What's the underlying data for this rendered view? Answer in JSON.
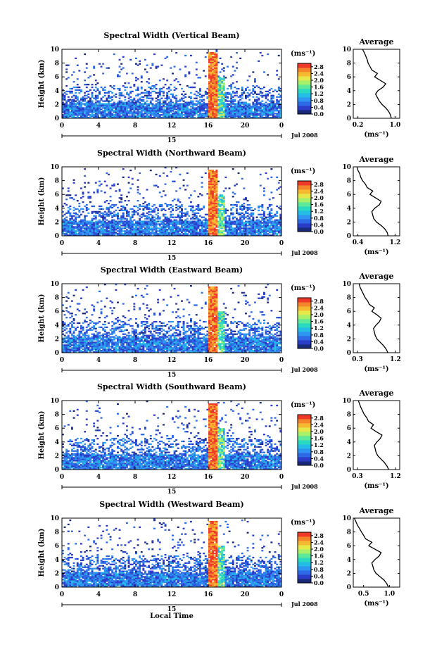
{
  "colors": {
    "scale": [
      "#1a2a7a",
      "#2a3cc8",
      "#2f6ae6",
      "#2e95f0",
      "#24bde6",
      "#29d9c0",
      "#5de89a",
      "#a8ef6a",
      "#e6e84a",
      "#f5b932",
      "#f5852a",
      "#ef3a2a"
    ],
    "axis": "#000000"
  },
  "figure": {
    "colorbar_unit": "(ms⁻¹)",
    "date_label": "Jul 2008",
    "xlabel": "Local Time"
  },
  "chart_data": [
    {
      "type": "heatmap",
      "title": "Spectral Width (Vertical Beam)",
      "ylabel": "Height (km)",
      "xlabel": "",
      "xlim": [
        0,
        24
      ],
      "ylim": [
        0,
        10
      ],
      "x_ticks": [
        "0",
        "4",
        "8",
        "12",
        "16",
        "20",
        "0"
      ],
      "y_ticks": [
        "0",
        "2",
        "4",
        "6",
        "8",
        "10"
      ],
      "day_label": "15",
      "colorbar": {
        "ticks": [
          "0.0",
          "0.4",
          "0.8",
          "1.2",
          "1.6",
          "2.0",
          "2.4",
          "2.8"
        ],
        "range": [
          0,
          3.0
        ]
      },
      "average": {
        "title": "Average",
        "xlabel": "(ms⁻¹)",
        "xlim": [
          0.1,
          1.1
        ],
        "x_ticks": [
          "0.2",
          "1.0"
        ],
        "heights": [
          0,
          0.5,
          1,
          1.5,
          2,
          2.5,
          3,
          3.5,
          4,
          4.5,
          5,
          5.5,
          6,
          6.5,
          7,
          7.5,
          8,
          8.5,
          9,
          9.5,
          10
        ],
        "values": [
          0.92,
          0.9,
          0.86,
          0.8,
          0.72,
          0.66,
          0.62,
          0.58,
          0.63,
          0.74,
          0.8,
          0.68,
          0.56,
          0.62,
          0.5,
          0.46,
          0.42,
          0.4,
          0.37,
          0.34,
          0.3
        ]
      }
    },
    {
      "type": "heatmap",
      "title": "Spectral Width (Northward Beam)",
      "ylabel": "Height (km)",
      "xlabel": "",
      "xlim": [
        0,
        24
      ],
      "ylim": [
        0,
        10
      ],
      "x_ticks": [
        "0",
        "4",
        "8",
        "12",
        "16",
        "20",
        "0"
      ],
      "y_ticks": [
        "0",
        "2",
        "4",
        "6",
        "8",
        "10"
      ],
      "day_label": "15",
      "colorbar": {
        "ticks": [
          "0.0",
          "0.4",
          "0.8",
          "1.2",
          "1.6",
          "2.0",
          "2.4",
          "2.8"
        ],
        "range": [
          0,
          3.0
        ]
      },
      "average": {
        "title": "Average",
        "xlabel": "(ms⁻¹)",
        "xlim": [
          0.3,
          1.3
        ],
        "x_ticks": [
          "0.4",
          "1.2"
        ],
        "heights": [
          0,
          0.5,
          1,
          1.5,
          2,
          2.5,
          3,
          3.5,
          4,
          4.5,
          5,
          5.5,
          6,
          6.5,
          7,
          7.5,
          8,
          8.5,
          9,
          9.5,
          10
        ],
        "values": [
          1.05,
          1.03,
          0.98,
          0.9,
          0.8,
          0.74,
          0.72,
          0.7,
          0.76,
          0.86,
          0.9,
          0.78,
          0.66,
          0.72,
          0.6,
          0.56,
          0.5,
          0.46,
          0.44,
          0.4,
          0.38
        ]
      }
    },
    {
      "type": "heatmap",
      "title": "Spectral Width (Eastward Beam)",
      "ylabel": "Height (km)",
      "xlabel": "",
      "xlim": [
        0,
        24
      ],
      "ylim": [
        0,
        10
      ],
      "x_ticks": [
        "0",
        "4",
        "8",
        "12",
        "16",
        "20",
        "0"
      ],
      "y_ticks": [
        "0",
        "2",
        "4",
        "6",
        "8",
        "10"
      ],
      "day_label": "15",
      "colorbar": {
        "ticks": [
          "0.0",
          "0.4",
          "0.8",
          "1.2",
          "1.6",
          "2.0",
          "2.4",
          "2.8"
        ],
        "range": [
          0,
          3.0
        ]
      },
      "average": {
        "title": "Average",
        "xlabel": "(ms⁻¹)",
        "xlim": [
          0.2,
          1.3
        ],
        "x_ticks": [
          "0.3",
          "1.2"
        ],
        "heights": [
          0,
          0.5,
          1,
          1.5,
          2,
          2.5,
          3,
          3.5,
          4,
          4.5,
          5,
          5.5,
          6,
          6.5,
          7,
          7.5,
          8,
          8.5,
          9,
          9.5,
          10
        ],
        "values": [
          1.02,
          0.98,
          0.92,
          0.84,
          0.76,
          0.72,
          0.7,
          0.68,
          0.74,
          0.82,
          0.86,
          0.76,
          0.64,
          0.7,
          0.58,
          0.54,
          0.48,
          0.44,
          0.4,
          0.36,
          0.34
        ]
      }
    },
    {
      "type": "heatmap",
      "title": "Spectral Width (Southward Beam)",
      "ylabel": "Height (km)",
      "xlabel": "",
      "xlim": [
        0,
        24
      ],
      "ylim": [
        0,
        10
      ],
      "x_ticks": [
        "0",
        "4",
        "8",
        "12",
        "16",
        "20",
        "0"
      ],
      "y_ticks": [
        "0",
        "2",
        "4",
        "6",
        "8",
        "10"
      ],
      "day_label": "15",
      "colorbar": {
        "ticks": [
          "0.0",
          "0.4",
          "0.8",
          "1.2",
          "1.6",
          "2.0",
          "2.4",
          "2.8"
        ],
        "range": [
          0,
          3.0
        ]
      },
      "average": {
        "title": "Average",
        "xlabel": "(ms⁻¹)",
        "xlim": [
          0.2,
          1.3
        ],
        "x_ticks": [
          "0.3",
          "1.2"
        ],
        "heights": [
          0,
          0.5,
          1,
          1.5,
          2,
          2.5,
          3,
          3.5,
          4,
          4.5,
          5,
          5.5,
          6,
          6.5,
          7,
          7.5,
          8,
          8.5,
          9,
          9.5,
          10
        ],
        "values": [
          1.04,
          1.0,
          0.94,
          0.86,
          0.78,
          0.74,
          0.72,
          0.7,
          0.76,
          0.84,
          0.88,
          0.74,
          0.62,
          0.68,
          0.56,
          0.52,
          0.46,
          0.42,
          0.38,
          0.35,
          0.32
        ]
      }
    },
    {
      "type": "heatmap",
      "title": "Spectral Width (Westward Beam)",
      "ylabel": "Height (km)",
      "xlabel": "Local Time",
      "xlim": [
        0,
        24
      ],
      "ylim": [
        0,
        10
      ],
      "x_ticks": [
        "0",
        "4",
        "8",
        "12",
        "16",
        "20",
        "0"
      ],
      "y_ticks": [
        "0",
        "2",
        "4",
        "6",
        "8",
        "10"
      ],
      "day_label": "15",
      "colorbar": {
        "ticks": [
          "0.0",
          "0.4",
          "0.8",
          "1.2",
          "1.6",
          "2.0",
          "2.4",
          "2.8"
        ],
        "range": [
          0,
          3.0
        ]
      },
      "average": {
        "title": "Average",
        "xlabel": "(ms⁻¹)",
        "xlim": [
          0.3,
          1.2
        ],
        "x_ticks": [
          "0.5",
          "1.0"
        ],
        "heights": [
          0,
          0.5,
          1,
          1.5,
          2,
          2.5,
          3,
          3.5,
          4,
          4.5,
          5,
          5.5,
          6,
          6.5,
          7,
          7.5,
          8,
          8.5,
          9,
          9.5,
          10
        ],
        "values": [
          0.98,
          0.95,
          0.9,
          0.82,
          0.74,
          0.7,
          0.68,
          0.66,
          0.72,
          0.8,
          0.84,
          0.72,
          0.6,
          0.66,
          0.54,
          0.5,
          0.46,
          0.42,
          0.38,
          0.35,
          0.32
        ]
      }
    }
  ]
}
